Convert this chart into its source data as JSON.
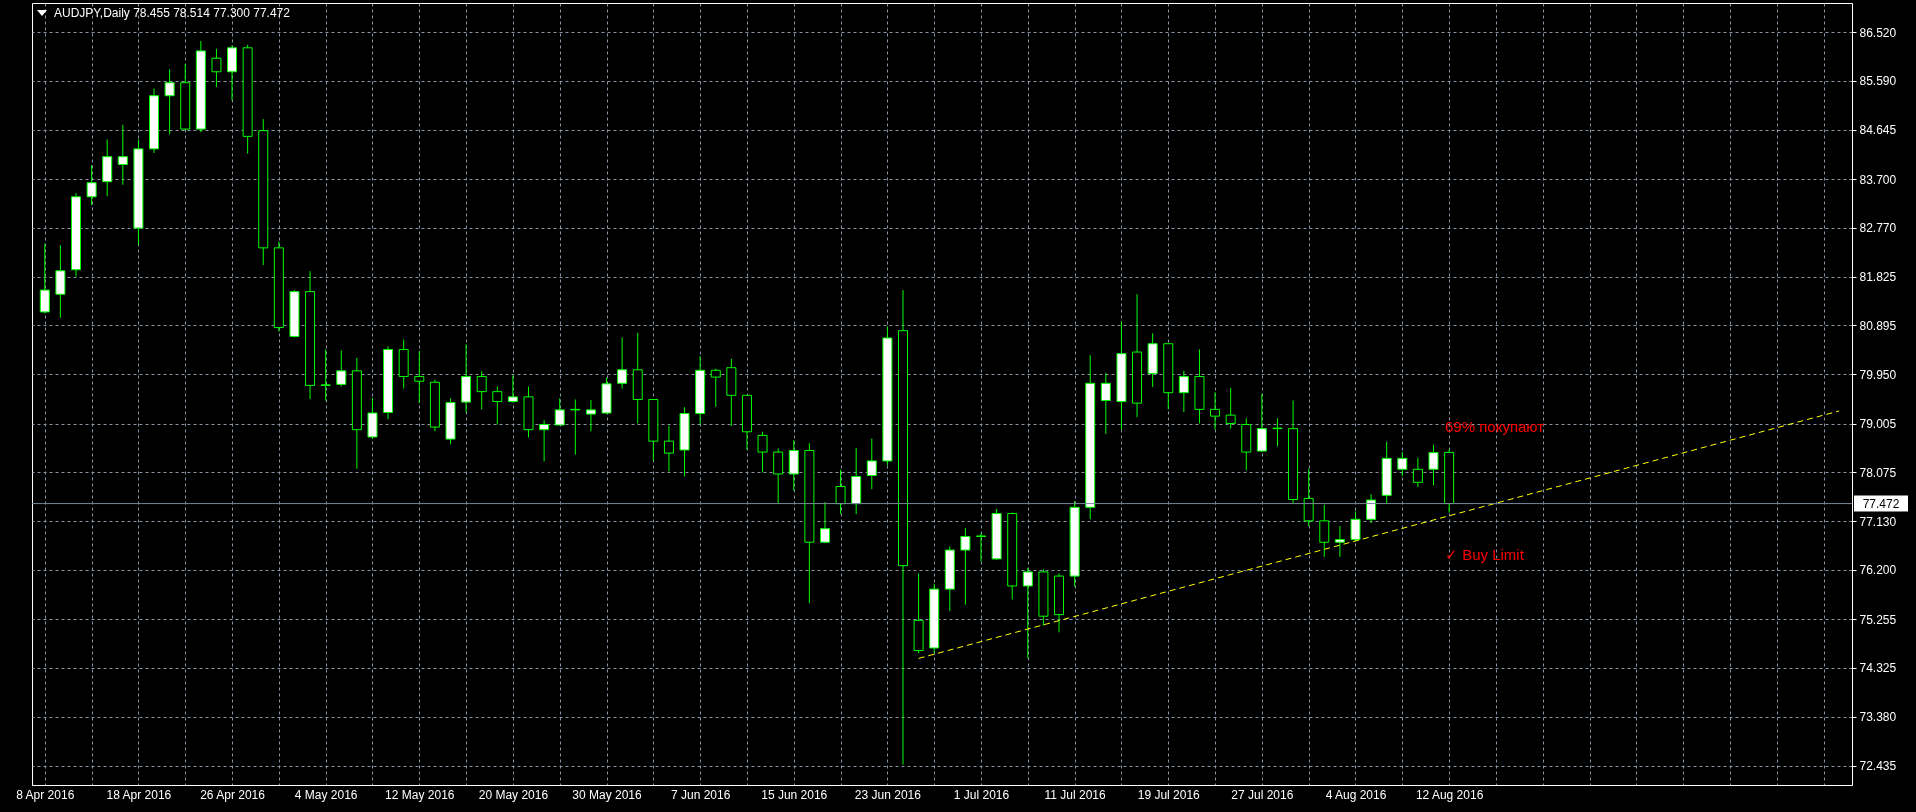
{
  "chart_data": {
    "type": "candlestick",
    "title": "AUDJPY,Daily  78.455 78.514 77.300 77.472",
    "color": "#00ff00",
    "categories": [
      "8 Apr 2016",
      null,
      null,
      null,
      null,
      null,
      "18 Apr 2016",
      null,
      null,
      null,
      null,
      null,
      "26 Apr 2016",
      null,
      null,
      null,
      null,
      null,
      "4 May 2016",
      null,
      null,
      null,
      null,
      null,
      "12 May 2016",
      null,
      null,
      null,
      null,
      null,
      "20 May 2016",
      null,
      null,
      null,
      null,
      null,
      "30 May 2016",
      null,
      null,
      null,
      null,
      null,
      "7 Jun 2016",
      null,
      null,
      null,
      null,
      null,
      "15 Jun 2016",
      null,
      null,
      null,
      null,
      null,
      "23 Jun 2016",
      null,
      null,
      null,
      null,
      null,
      "1 Jul 2016",
      null,
      null,
      null,
      null,
      null,
      "11 Jul 2016",
      null,
      null,
      null,
      null,
      null,
      "19 Jul 2016",
      null,
      null,
      null,
      null,
      null,
      "27 Jul 2016",
      null,
      null,
      null,
      null,
      null,
      "4 Aug 2016",
      null,
      null,
      null,
      null,
      null,
      "12 Aug 2016",
      null,
      null,
      null,
      null,
      null,
      null,
      null,
      null,
      null,
      null,
      null,
      null,
      null,
      null,
      null,
      null,
      null,
      null,
      null,
      null,
      null,
      null,
      null,
      null,
      null
    ],
    "ohlc": [
      [
        81.15,
        82.46,
        81.12,
        81.57
      ],
      [
        81.49,
        82.43,
        81.04,
        81.94
      ],
      [
        81.96,
        83.43,
        81.83,
        83.36
      ],
      [
        83.36,
        83.97,
        83.2,
        83.63
      ],
      [
        83.65,
        84.46,
        83.37,
        84.13
      ],
      [
        83.98,
        84.74,
        83.59,
        84.13
      ],
      [
        82.76,
        84.46,
        82.44,
        84.28
      ],
      [
        84.28,
        85.44,
        84.2,
        85.3
      ],
      [
        85.3,
        85.81,
        84.56,
        85.55
      ],
      [
        85.55,
        85.91,
        84.64,
        84.66
      ],
      [
        84.66,
        86.35,
        84.6,
        86.16
      ],
      [
        86.02,
        86.2,
        85.47,
        85.76
      ],
      [
        85.76,
        86.27,
        85.21,
        86.22
      ],
      [
        86.22,
        86.28,
        84.19,
        84.52
      ],
      [
        84.63,
        84.85,
        82.05,
        82.38
      ],
      [
        82.38,
        82.5,
        80.77,
        80.85
      ],
      [
        80.68,
        81.57,
        80.66,
        81.54
      ],
      [
        81.54,
        81.93,
        79.48,
        79.74
      ],
      [
        79.74,
        80.43,
        79.45,
        79.75
      ],
      [
        79.76,
        80.41,
        79.72,
        80.02
      ],
      [
        80.02,
        80.27,
        78.14,
        78.89
      ],
      [
        78.75,
        79.5,
        78.71,
        79.21
      ],
      [
        79.22,
        80.49,
        79.09,
        80.43
      ],
      [
        80.43,
        80.62,
        79.68,
        79.91
      ],
      [
        79.91,
        80.4,
        79.4,
        79.82
      ],
      [
        79.8,
        79.85,
        78.86,
        78.94
      ],
      [
        78.71,
        79.49,
        78.61,
        79.41
      ],
      [
        79.42,
        80.53,
        79.22,
        79.91
      ],
      [
        79.91,
        80.01,
        79.28,
        79.62
      ],
      [
        79.62,
        79.72,
        78.99,
        79.43
      ],
      [
        79.43,
        79.93,
        79.41,
        79.52
      ],
      [
        79.52,
        79.72,
        78.74,
        78.89
      ],
      [
        78.89,
        79.07,
        78.28,
        78.99
      ],
      [
        78.98,
        79.49,
        78.98,
        79.27
      ],
      [
        79.27,
        79.47,
        78.41,
        79.28
      ],
      [
        79.19,
        79.46,
        78.86,
        79.27
      ],
      [
        79.21,
        79.89,
        79.19,
        79.77
      ],
      [
        79.78,
        80.66,
        79.68,
        80.04
      ],
      [
        80.04,
        80.75,
        79.01,
        79.47
      ],
      [
        79.47,
        79.47,
        78.29,
        78.67
      ],
      [
        78.67,
        78.97,
        78.09,
        78.44
      ],
      [
        78.5,
        79.32,
        77.99,
        79.2
      ],
      [
        79.2,
        80.3,
        78.99,
        80.03
      ],
      [
        80.03,
        80.06,
        79.33,
        79.9
      ],
      [
        80.08,
        80.25,
        78.96,
        79.55
      ],
      [
        79.55,
        79.55,
        78.51,
        78.85
      ],
      [
        78.78,
        78.85,
        78.07,
        78.46
      ],
      [
        78.46,
        78.53,
        77.47,
        78.04
      ],
      [
        78.04,
        78.69,
        77.72,
        78.49
      ],
      [
        78.49,
        78.63,
        75.56,
        76.73
      ],
      [
        76.73,
        77.5,
        76.71,
        76.99
      ],
      [
        77.8,
        78.12,
        77.27,
        77.47
      ],
      [
        77.47,
        78.54,
        77.27,
        77.99
      ],
      [
        78.01,
        78.72,
        77.75,
        78.29
      ],
      [
        78.29,
        80.87,
        78.21,
        80.65
      ],
      [
        80.79,
        81.57,
        72.46,
        76.28
      ],
      [
        75.23,
        76.13,
        74.6,
        74.65
      ],
      [
        74.7,
        75.93,
        74.6,
        75.83
      ],
      [
        75.83,
        76.65,
        75.41,
        76.58
      ],
      [
        76.58,
        77.0,
        75.53,
        76.84
      ],
      [
        76.84,
        76.9,
        76.36,
        76.85
      ],
      [
        76.41,
        77.37,
        76.39,
        77.28
      ],
      [
        77.28,
        77.3,
        75.63,
        75.89
      ],
      [
        75.89,
        76.24,
        74.5,
        76.16
      ],
      [
        76.16,
        76.21,
        75.13,
        75.31
      ],
      [
        76.08,
        76.13,
        75.0,
        75.34
      ],
      [
        76.08,
        77.52,
        75.88,
        77.4
      ],
      [
        77.4,
        80.32,
        77.17,
        79.78
      ],
      [
        79.45,
        79.98,
        78.81,
        79.78
      ],
      [
        79.43,
        80.97,
        78.89,
        80.35
      ],
      [
        80.38,
        81.49,
        79.13,
        79.4
      ],
      [
        79.97,
        80.74,
        79.71,
        80.54
      ],
      [
        80.54,
        80.54,
        79.28,
        79.6
      ],
      [
        79.6,
        80.02,
        79.23,
        79.91
      ],
      [
        79.91,
        80.43,
        79.01,
        79.28
      ],
      [
        79.28,
        79.61,
        78.89,
        79.15
      ],
      [
        79.17,
        79.69,
        78.91,
        79.01
      ],
      [
        78.99,
        79.11,
        78.11,
        78.46
      ],
      [
        78.48,
        79.58,
        78.46,
        78.91
      ],
      [
        78.91,
        79.11,
        78.57,
        78.92
      ],
      [
        78.91,
        79.45,
        77.47,
        77.55
      ],
      [
        77.57,
        78.14,
        77.04,
        77.14
      ],
      [
        77.14,
        77.45,
        76.45,
        76.73
      ],
      [
        76.73,
        77.04,
        76.45,
        76.78
      ],
      [
        76.78,
        77.32,
        76.75,
        77.17
      ],
      [
        77.17,
        77.65,
        77.1,
        77.54
      ],
      [
        77.63,
        78.66,
        77.47,
        78.34
      ],
      [
        78.13,
        78.46,
        78.0,
        78.34
      ],
      [
        78.13,
        78.35,
        77.79,
        77.88
      ],
      [
        78.13,
        78.6,
        77.82,
        78.45
      ],
      [
        78.455,
        78.514,
        77.3,
        77.472
      ],
      null,
      null,
      null,
      null,
      null,
      null,
      null,
      null,
      null,
      null,
      null,
      null,
      null,
      null,
      null,
      null,
      null,
      null,
      null,
      null,
      null,
      null,
      null,
      null,
      null
    ],
    "series": [
      {
        "type": "line",
        "color": "#ffff00",
        "line_style": "dashed",
        "values": [
          null,
          null,
          null,
          null,
          null,
          null,
          null,
          null,
          null,
          null,
          null,
          null,
          null,
          null,
          null,
          null,
          null,
          null,
          null,
          null,
          null,
          null,
          null,
          null,
          null,
          null,
          null,
          null,
          null,
          null,
          null,
          null,
          null,
          null,
          null,
          null,
          null,
          null,
          null,
          null,
          null,
          null,
          null,
          null,
          null,
          null,
          null,
          null,
          null,
          null,
          null,
          null,
          null,
          null,
          null,
          null,
          74.5,
          null,
          null,
          null,
          null,
          null,
          null,
          null,
          null,
          null,
          null,
          null,
          null,
          null,
          null,
          null,
          null,
          null,
          null,
          null,
          null,
          null,
          null,
          null,
          null,
          null,
          null,
          null,
          null,
          null,
          null,
          null,
          null,
          null,
          null,
          null,
          null,
          null,
          null,
          null,
          null,
          null,
          null,
          null,
          null,
          null,
          null,
          null,
          null,
          null,
          null,
          null,
          null,
          null,
          null,
          null,
          null,
          null,
          null,
          79.25
        ]
      }
    ],
    "ref_lines": [
      {
        "axis": "y",
        "value": 77.472,
        "label": "77.472",
        "color": "#778899"
      }
    ],
    "annotations": [
      "69% покупают",
      "✓ Buy Limit"
    ],
    "ylim": [
      72.07,
      87.08
    ],
    "yticks": [
      {
        "value": 86.52,
        "label": "86.520"
      },
      {
        "value": 85.59,
        "label": "85.590"
      },
      {
        "value": 84.645,
        "label": "84.645"
      },
      {
        "value": 83.7,
        "label": "83.700"
      },
      {
        "value": 82.77,
        "label": "82.770"
      },
      {
        "value": 81.825,
        "label": "81.825"
      },
      {
        "value": 80.895,
        "label": "80.895"
      },
      {
        "value": 79.95,
        "label": "79.950"
      },
      {
        "value": 79.005,
        "label": "79.005"
      },
      {
        "value": 78.075,
        "label": "78.075"
      },
      {
        "value": 77.13,
        "label": "77.130"
      },
      {
        "value": 76.2,
        "label": "76.200"
      },
      {
        "value": 75.255,
        "label": "75.255"
      },
      {
        "value": 74.325,
        "label": "74.325"
      },
      {
        "value": 73.38,
        "label": "73.380"
      },
      {
        "value": 72.435,
        "label": "72.435"
      }
    ],
    "grid": true
  }
}
